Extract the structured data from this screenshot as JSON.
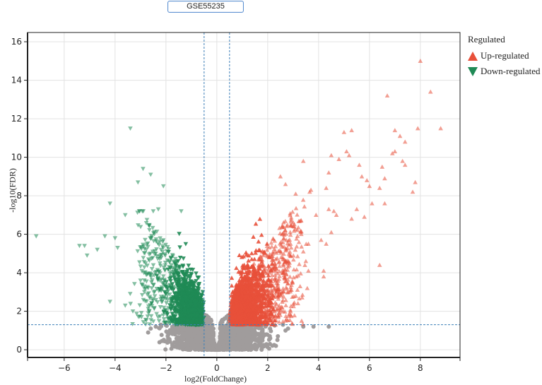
{
  "title": "GSE55235",
  "legend": {
    "title": "Regulated",
    "items": [
      {
        "label": "Up-regulated",
        "color": "#e8503a",
        "marker": "triangle-up"
      },
      {
        "label": "Down-regulated",
        "color": "#1f8a55",
        "marker": "triangle-down"
      }
    ]
  },
  "colors": {
    "up": "#e8503a",
    "down": "#1f8a55",
    "not_significant": "#a09c9c",
    "threshold_line": "#3d7fb8",
    "grid": "#e2e2e2",
    "axis": "#222222"
  },
  "chart_data": {
    "type": "scatter",
    "subtype": "volcano",
    "title": "GSE55235",
    "xlabel": "log2(FoldChange)",
    "ylabel": "-log10(FDR)",
    "xlim": [
      -7.44,
      9.56
    ],
    "ylim": [
      -0.4,
      16.48
    ],
    "x_ticks": [
      -6,
      -4,
      -2,
      0,
      2,
      4,
      6,
      8
    ],
    "x_tick_labels": [
      "−6",
      "−4",
      "−2",
      "0",
      "2",
      "4",
      "6",
      "8"
    ],
    "y_ticks": [
      0,
      2,
      4,
      6,
      8,
      10,
      12,
      14,
      16
    ],
    "y_tick_labels": [
      "0",
      "2",
      "4",
      "6",
      "8",
      "10",
      "12",
      "14",
      "16"
    ],
    "grid": true,
    "legend_position": "right",
    "thresholds": {
      "log2fc": [
        -0.5,
        0.5
      ],
      "neg_log10_fdr": 1.3
    },
    "series": [
      {
        "name": "Up-regulated",
        "marker": "triangle-up",
        "points": [
          [
            8.0,
            15.0
          ],
          [
            8.4,
            13.4
          ],
          [
            6.7,
            13.2
          ],
          [
            8.8,
            11.5
          ],
          [
            7.9,
            11.5
          ],
          [
            7.0,
            11.4
          ],
          [
            7.2,
            11.1
          ],
          [
            5.3,
            11.4
          ],
          [
            5.0,
            11.3
          ],
          [
            7.4,
            10.8
          ],
          [
            7.0,
            10.3
          ],
          [
            5.1,
            10.3
          ],
          [
            4.5,
            10.1
          ],
          [
            5.2,
            10.1
          ],
          [
            6.9,
            10.2
          ],
          [
            4.8,
            9.9
          ],
          [
            7.3,
            9.8
          ],
          [
            7.4,
            9.6
          ],
          [
            5.6,
            9.6
          ],
          [
            6.5,
            9.5
          ],
          [
            3.4,
            9.8
          ],
          [
            4.4,
            9.2
          ],
          [
            5.7,
            9.0
          ],
          [
            6.6,
            8.9
          ],
          [
            2.5,
            9.0
          ],
          [
            5.9,
            8.8
          ],
          [
            7.8,
            8.7
          ],
          [
            6.0,
            8.5
          ],
          [
            6.4,
            8.4
          ],
          [
            7.7,
            8.2
          ],
          [
            4.3,
            8.4
          ],
          [
            3.7,
            8.3
          ],
          [
            2.7,
            8.6
          ],
          [
            3.1,
            8.1
          ],
          [
            6.1,
            7.6
          ],
          [
            6.6,
            7.6
          ],
          [
            4.4,
            7.3
          ],
          [
            4.6,
            7.2
          ],
          [
            5.5,
            7.3
          ],
          [
            4.7,
            7.0
          ],
          [
            5.8,
            6.9
          ],
          [
            5.3,
            6.8
          ],
          [
            3.9,
            7.0
          ],
          [
            3.3,
            6.7
          ],
          [
            4.5,
            6.1
          ],
          [
            4.1,
            5.7
          ],
          [
            4.3,
            5.5
          ],
          [
            6.4,
            4.4
          ],
          [
            4.2,
            4.1
          ],
          [
            4.2,
            3.8
          ],
          [
            3.6,
            5.5
          ],
          [
            3.4,
            5.1
          ],
          [
            2.9,
            5.5
          ],
          [
            3.5,
            4.6
          ],
          [
            3.6,
            4.1
          ],
          [
            2.6,
            4.7
          ]
        ]
      },
      {
        "name": "Down-regulated",
        "marker": "triangle-down",
        "points": [
          [
            -3.4,
            11.5
          ],
          [
            -2.9,
            9.4
          ],
          [
            -2.6,
            9.1
          ],
          [
            -3.1,
            8.7
          ],
          [
            -2.1,
            8.5
          ],
          [
            -4.2,
            7.6
          ],
          [
            -3.6,
            7.0
          ],
          [
            -1.4,
            7.2
          ],
          [
            -2.5,
            7.2
          ],
          [
            -2.3,
            7.3
          ],
          [
            -7.1,
            5.9
          ],
          [
            -5.2,
            5.4
          ],
          [
            -5.4,
            5.4
          ],
          [
            -4.7,
            5.2
          ],
          [
            -5.1,
            4.9
          ],
          [
            -4.4,
            5.9
          ],
          [
            -4.0,
            5.8
          ],
          [
            -3.9,
            5.3
          ],
          [
            -4.2,
            2.5
          ],
          [
            -3.6,
            2.3
          ],
          [
            -3.3,
            2.0
          ],
          [
            -3.0,
            3.6
          ],
          [
            -2.8,
            4.5
          ]
        ]
      },
      {
        "name": "Not significant",
        "marker": "circle",
        "description": "dense grey cloud below FDR threshold and between |log2FC| < 0.5, forming V-shape near origin"
      }
    ]
  }
}
